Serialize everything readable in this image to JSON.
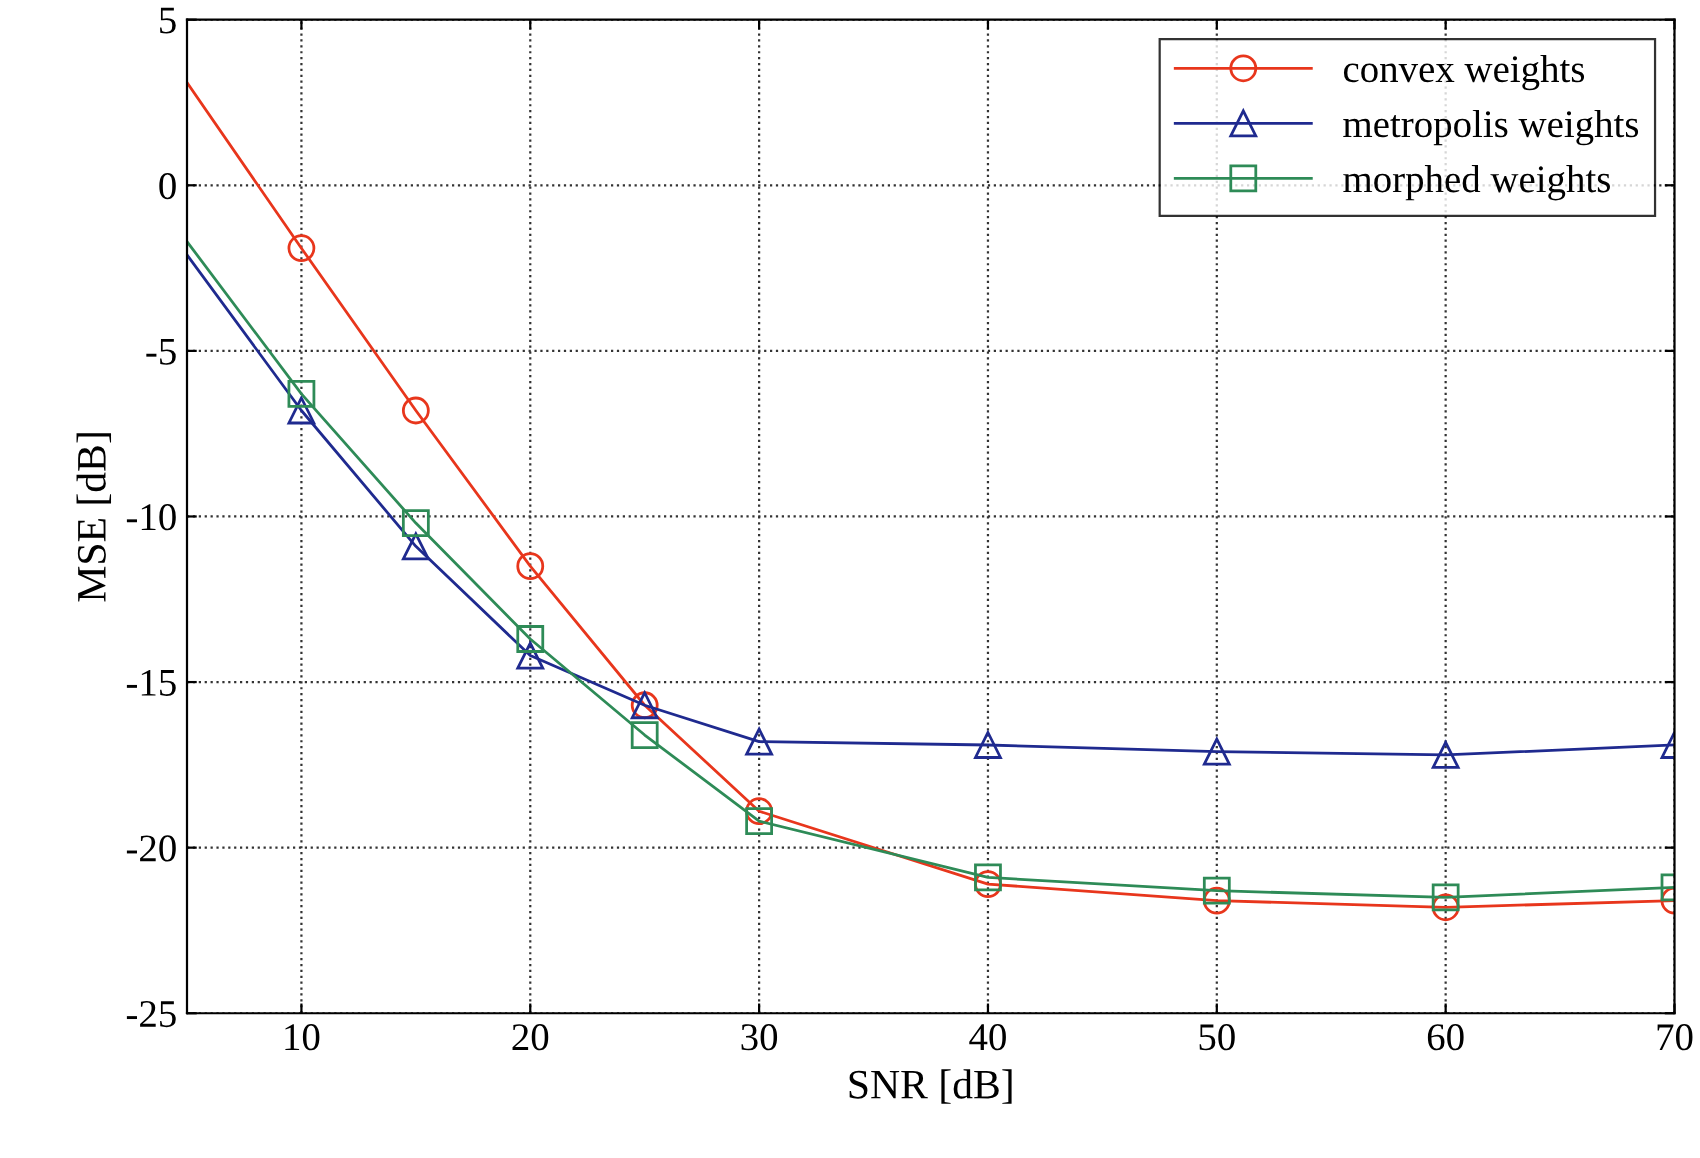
{
  "chart_data": {
    "type": "line",
    "xlabel": "SNR [dB]",
    "ylabel": "MSE [dB]",
    "x": [
      5,
      10,
      15,
      20,
      25,
      30,
      40,
      50,
      60,
      70
    ],
    "series": [
      {
        "name": "convex weights",
        "color": "#e8361c",
        "marker": "circle",
        "values": [
          3.1,
          -1.9,
          -6.8,
          -11.5,
          -15.7,
          -18.9,
          -21.1,
          -21.6,
          -21.8,
          -21.6
        ]
      },
      {
        "name": "metropolis weights",
        "color": "#1f2a8f",
        "marker": "triangle",
        "values": [
          -2.1,
          -6.8,
          -10.9,
          -14.2,
          -15.7,
          -16.8,
          -16.9,
          -17.1,
          -17.2,
          -16.9
        ]
      },
      {
        "name": "morphed weights",
        "color": "#2e8b57",
        "marker": "square",
        "values": [
          -1.7,
          -6.3,
          -10.2,
          -13.7,
          -16.6,
          -19.2,
          -20.9,
          -21.3,
          -21.5,
          -21.2
        ]
      }
    ],
    "xlim": [
      5,
      70
    ],
    "xticks": [
      10,
      20,
      30,
      40,
      50,
      60,
      70
    ],
    "ylim": [
      -25,
      5
    ],
    "yticks": [
      -25,
      -20,
      -15,
      -10,
      -5,
      0,
      5
    ],
    "grid": true,
    "line_style": "solid",
    "legend": "top right"
  }
}
